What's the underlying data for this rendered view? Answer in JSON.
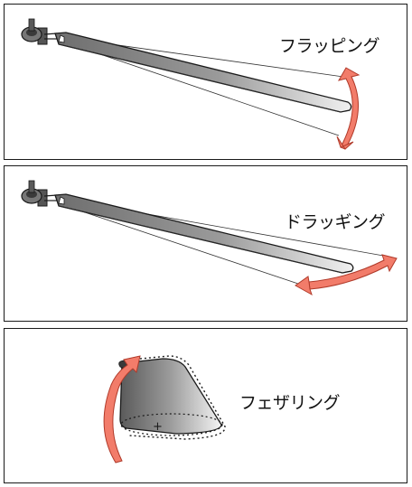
{
  "panels": [
    {
      "label": "フラッピング"
    },
    {
      "label": "ドラッギング"
    },
    {
      "label": "フェザリング"
    }
  ],
  "colors": {
    "arrow_fill": "#f27c6a",
    "arrow_stroke": "#b03a2a",
    "blade_dark": "#6e6e6e",
    "blade_light": "#e8e8e8",
    "hub_dark": "#3a3a3a",
    "outline": "#1a1a1a"
  },
  "icons": [
    "rotor-hub-icon",
    "rotor-blade-icon",
    "bidirectional-curved-arrow-icon",
    "feathering-arrow-icon"
  ],
  "center_mark": "+"
}
